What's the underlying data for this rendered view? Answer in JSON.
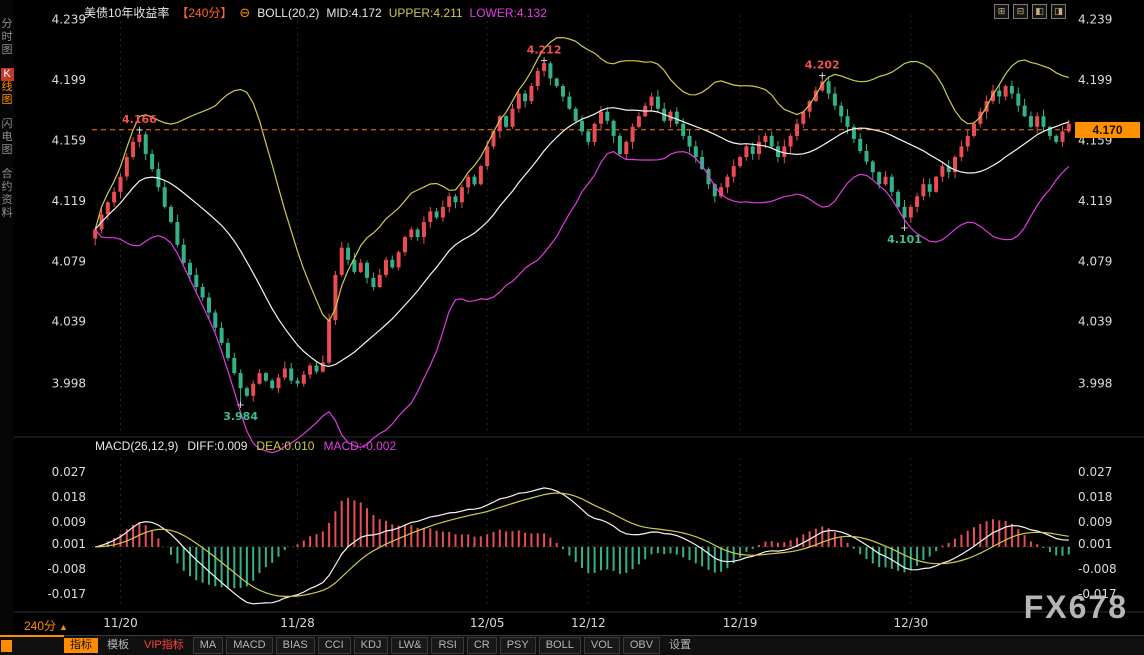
{
  "header": {
    "title": "美债10年收益率",
    "period_tag": "【240分】",
    "collapse_icon": "⊖",
    "boll_label": "BOLL(20,2)",
    "mid": "MID:4.172",
    "upper": "UPPER:4.211",
    "lower": "LOWER:4.132"
  },
  "window_controls": {
    "icons": [
      {
        "name": "layout-quad-icon",
        "glyph": "⊞"
      },
      {
        "name": "layout-dual-icon",
        "glyph": "⊟"
      },
      {
        "name": "layout-left-icon",
        "glyph": "◧"
      },
      {
        "name": "layout-right-icon",
        "glyph": "◨"
      }
    ]
  },
  "sidebar": {
    "items": [
      {
        "name": "tab-time-chart",
        "label": "分时图",
        "active": false
      },
      {
        "name": "tab-kline-chart",
        "label": "K线图",
        "active": true
      },
      {
        "name": "tab-flash-chart",
        "label": "闪电图",
        "active": false
      },
      {
        "name": "tab-contract-info",
        "label": "合约资料",
        "active": false
      }
    ]
  },
  "macd_header": {
    "label": "MACD(26,12,9)",
    "diff": "DIFF:0.009",
    "dea": "DEA:0.010",
    "macd": "MACD:-0.002"
  },
  "price_badge": "4.170",
  "period_selector": {
    "label": "240分",
    "arrow": "▲"
  },
  "watermark": "FX678",
  "toolbar": {
    "buttons": [
      {
        "name": "indicators",
        "label": "指标",
        "style": "selected"
      },
      {
        "name": "templates",
        "label": "模板",
        "style": "tab"
      },
      {
        "name": "vip-indicators",
        "label": "VIP指标",
        "style": "vip"
      },
      {
        "name": "ma",
        "label": "MA",
        "style": "box"
      },
      {
        "name": "macd",
        "label": "MACD",
        "style": "box"
      },
      {
        "name": "bias",
        "label": "BIAS",
        "style": "box"
      },
      {
        "name": "cci",
        "label": "CCI",
        "style": "box"
      },
      {
        "name": "kdj",
        "label": "KDJ",
        "style": "box"
      },
      {
        "name": "lwr",
        "label": "LW&",
        "style": "box"
      },
      {
        "name": "rsi",
        "label": "RSI",
        "style": "box"
      },
      {
        "name": "cr",
        "label": "CR",
        "style": "box"
      },
      {
        "name": "psy",
        "label": "PSY",
        "style": "box"
      },
      {
        "name": "boll",
        "label": "BOLL",
        "style": "box"
      },
      {
        "name": "vol",
        "label": "VOL",
        "style": "box"
      },
      {
        "name": "obv",
        "label": "OBV",
        "style": "box"
      },
      {
        "name": "settings",
        "label": "设置",
        "style": "tab"
      }
    ]
  },
  "chart_data": {
    "type": "candlestick",
    "title": "美债10年收益率 240分 K线 + BOLL(20,2) / MACD(26,12,9)",
    "price_range": {
      "top": 4.242,
      "bottom": 3.966
    },
    "macd_range": {
      "top": 0.032,
      "bottom": -0.022
    },
    "price_axis_ticks": [
      {
        "label": "4.239",
        "value": 4.239
      },
      {
        "label": "4.199",
        "value": 4.199
      },
      {
        "label": "4.159",
        "value": 4.159
      },
      {
        "label": "4.119",
        "value": 4.119
      },
      {
        "label": "4.079",
        "value": 4.079
      },
      {
        "label": "4.039",
        "value": 4.039
      },
      {
        "label": "3.998",
        "value": 3.998
      }
    ],
    "macd_axis_ticks": [
      {
        "label": "0.027",
        "value": 0.027
      },
      {
        "label": "0.018",
        "value": 0.018
      },
      {
        "label": "0.009",
        "value": 0.009
      },
      {
        "label": "0.001",
        "value": 0.001
      },
      {
        "label": "-0.008",
        "value": -0.008
      },
      {
        "label": "-0.017",
        "value": -0.017
      }
    ],
    "x_ticks": [
      {
        "label": "11/20",
        "index": 4
      },
      {
        "label": "11/28",
        "index": 32
      },
      {
        "label": "12/05",
        "index": 62
      },
      {
        "label": "12/12",
        "index": 78
      },
      {
        "label": "12/19",
        "index": 102
      },
      {
        "label": "12/30",
        "index": 129
      }
    ],
    "closes": [
      4.1,
      4.11,
      4.118,
      4.125,
      4.135,
      4.148,
      4.158,
      4.163,
      4.15,
      4.14,
      4.128,
      4.115,
      4.105,
      4.09,
      4.078,
      4.07,
      4.062,
      4.055,
      4.045,
      4.035,
      4.025,
      4.015,
      4.005,
      3.995,
      3.99,
      3.998,
      4.005,
      4.0,
      3.995,
      4.002,
      4.008,
      4.0,
      3.998,
      4.004,
      4.01,
      4.006,
      4.012,
      4.04,
      4.07,
      4.088,
      4.08,
      4.072,
      4.078,
      4.068,
      4.062,
      4.07,
      4.08,
      4.075,
      4.085,
      4.095,
      4.1,
      4.095,
      4.105,
      4.112,
      4.108,
      4.115,
      4.122,
      4.118,
      4.128,
      4.135,
      4.13,
      4.142,
      4.155,
      4.165,
      4.175,
      4.168,
      4.18,
      4.19,
      4.185,
      4.195,
      4.205,
      4.21,
      4.2,
      4.195,
      4.188,
      4.18,
      4.172,
      4.165,
      4.158,
      4.17,
      4.178,
      4.172,
      4.162,
      4.15,
      4.158,
      4.168,
      4.175,
      4.182,
      4.188,
      4.18,
      4.172,
      4.178,
      4.17,
      4.162,
      4.155,
      4.148,
      4.14,
      4.13,
      4.122,
      4.128,
      4.135,
      4.142,
      4.148,
      4.155,
      4.15,
      4.158,
      4.162,
      4.155,
      4.148,
      4.155,
      4.162,
      4.17,
      4.178,
      4.185,
      4.192,
      4.198,
      4.19,
      4.182,
      4.175,
      4.168,
      4.16,
      4.152,
      4.145,
      4.138,
      4.13,
      4.135,
      4.125,
      4.115,
      4.108,
      4.115,
      4.122,
      4.13,
      4.125,
      4.135,
      4.142,
      4.138,
      4.148,
      4.155,
      4.162,
      4.17,
      4.178,
      4.185,
      4.192,
      4.188,
      4.195,
      4.19,
      4.182,
      4.175,
      4.168,
      4.175,
      4.168,
      4.162,
      4.158,
      4.165,
      4.17
    ],
    "indicators": {
      "boll": {
        "period": 20,
        "mult": 2,
        "mid": 4.172,
        "upper": 4.211,
        "lower": 4.132
      },
      "macd": {
        "fast": 12,
        "slow": 26,
        "signal": 9,
        "diff": 0.009,
        "dea": 0.01,
        "macd": -0.002
      }
    },
    "annotations": [
      {
        "text": "4.166",
        "index": 7,
        "price": 4.166,
        "type": "high",
        "color": "#f05050"
      },
      {
        "text": "3.984",
        "index": 23,
        "price": 3.984,
        "type": "low",
        "color": "#3fbd8e"
      },
      {
        "text": "4.212",
        "index": 71,
        "price": 4.212,
        "type": "high",
        "color": "#f05050"
      },
      {
        "text": "4.202",
        "index": 115,
        "price": 4.202,
        "type": "high",
        "color": "#f05050"
      },
      {
        "text": "4.101",
        "index": 128,
        "price": 4.101,
        "type": "low",
        "color": "#3fbd8e"
      }
    ],
    "current_price": 4.17,
    "dashed_price_line": 4.166,
    "colors": {
      "up": "#ea4d51",
      "down": "#35b189",
      "boll_upper": "#cfc94e",
      "boll_mid": "#f5f5f5",
      "boll_lower": "#e23ae2",
      "dashed": "#ff7e00",
      "grid": "#262626",
      "axis_text": "#dcdcdc",
      "badge": "#ff9100"
    }
  }
}
